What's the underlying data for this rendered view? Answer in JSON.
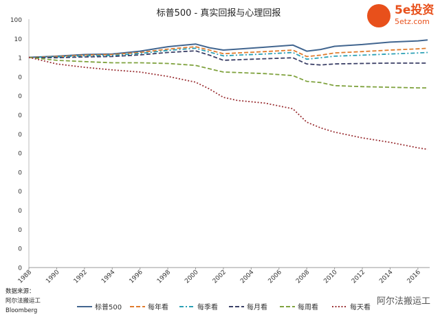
{
  "chart_data": {
    "type": "line",
    "title": "标普500 - 真实回报与心理回报",
    "xlabel": "",
    "ylabel": "",
    "y_ticks": [
      "100",
      "10",
      "1",
      "0",
      "0",
      "0",
      "0",
      "0",
      "0",
      "0",
      "0",
      "0",
      "0",
      "0"
    ],
    "x_ticks": [
      "1988",
      "1990",
      "1992",
      "1994",
      "1996",
      "1998",
      "2000",
      "2002",
      "2004",
      "2006",
      "2008",
      "2010",
      "2012",
      "2014",
      "2016"
    ],
    "xlim": [
      1988,
      2016.7
    ],
    "grid": false,
    "legend_position": "bottom",
    "series": [
      {
        "name": "标普500",
        "color": "#41658f",
        "style": "solid",
        "points": [
          [
            1988,
            1.0
          ],
          [
            1990,
            1.15
          ],
          [
            1992,
            1.4
          ],
          [
            1994,
            1.5
          ],
          [
            1996,
            2.1
          ],
          [
            1998,
            3.6
          ],
          [
            2000,
            5.0
          ],
          [
            2001,
            3.2
          ],
          [
            2002,
            2.4
          ],
          [
            2003,
            2.7
          ],
          [
            2005,
            3.4
          ],
          [
            2007,
            4.4
          ],
          [
            2008,
            2.1
          ],
          [
            2009,
            2.6
          ],
          [
            2010,
            3.8
          ],
          [
            2012,
            4.7
          ],
          [
            2014,
            6.3
          ],
          [
            2016,
            7.3
          ],
          [
            2016.7,
            8.2
          ]
        ]
      },
      {
        "name": "每年看",
        "color": "#e07b2c",
        "style": "dashed",
        "points": [
          [
            1988,
            1.0
          ],
          [
            1990,
            1.1
          ],
          [
            1992,
            1.3
          ],
          [
            1994,
            1.4
          ],
          [
            1996,
            1.8
          ],
          [
            1998,
            2.7
          ],
          [
            2000,
            3.6
          ],
          [
            2001,
            2.4
          ],
          [
            2002,
            1.55
          ],
          [
            2003,
            1.7
          ],
          [
            2005,
            2.0
          ],
          [
            2007,
            2.4
          ],
          [
            2008,
            1.1
          ],
          [
            2009,
            1.3
          ],
          [
            2010,
            1.7
          ],
          [
            2012,
            2.0
          ],
          [
            2014,
            2.4
          ],
          [
            2016,
            2.8
          ],
          [
            2016.7,
            3.0
          ]
        ]
      },
      {
        "name": "每季看",
        "color": "#2a9fb5",
        "style": "dashdot",
        "points": [
          [
            1988,
            1.0
          ],
          [
            1990,
            1.05
          ],
          [
            1992,
            1.2
          ],
          [
            1994,
            1.25
          ],
          [
            1996,
            1.6
          ],
          [
            1998,
            2.3
          ],
          [
            2000,
            3.0
          ],
          [
            2001,
            1.9
          ],
          [
            2002,
            1.2
          ],
          [
            2003,
            1.3
          ],
          [
            2005,
            1.5
          ],
          [
            2007,
            1.8
          ],
          [
            2008,
            0.8
          ],
          [
            2009,
            0.95
          ],
          [
            2010,
            1.15
          ],
          [
            2012,
            1.3
          ],
          [
            2014,
            1.5
          ],
          [
            2016,
            1.7
          ],
          [
            2016.7,
            1.8
          ]
        ]
      },
      {
        "name": "每月看",
        "color": "#3a3f66",
        "style": "dashed",
        "points": [
          [
            1988,
            1.0
          ],
          [
            1990,
            0.95
          ],
          [
            1992,
            1.05
          ],
          [
            1994,
            1.1
          ],
          [
            1996,
            1.35
          ],
          [
            1998,
            1.8
          ],
          [
            2000,
            2.2
          ],
          [
            2001,
            1.3
          ],
          [
            2002,
            0.7
          ],
          [
            2003,
            0.75
          ],
          [
            2005,
            0.85
          ],
          [
            2007,
            0.95
          ],
          [
            2008,
            0.45
          ],
          [
            2009,
            0.4
          ],
          [
            2010,
            0.45
          ],
          [
            2012,
            0.48
          ],
          [
            2014,
            0.5
          ],
          [
            2016,
            0.5
          ],
          [
            2016.7,
            0.5
          ]
        ]
      },
      {
        "name": "每周看",
        "color": "#7fa23e",
        "style": "dashed",
        "points": [
          [
            1988,
            1.0
          ],
          [
            1990,
            0.7
          ],
          [
            1992,
            0.6
          ],
          [
            1994,
            0.52
          ],
          [
            1996,
            0.52
          ],
          [
            1998,
            0.48
          ],
          [
            2000,
            0.38
          ],
          [
            2001,
            0.25
          ],
          [
            2002,
            0.17
          ],
          [
            2003,
            0.16
          ],
          [
            2005,
            0.14
          ],
          [
            2007,
            0.11
          ],
          [
            2008,
            0.055
          ],
          [
            2009,
            0.048
          ],
          [
            2010,
            0.033
          ],
          [
            2012,
            0.029
          ],
          [
            2014,
            0.027
          ],
          [
            2016,
            0.025
          ],
          [
            2016.7,
            0.025
          ]
        ]
      },
      {
        "name": "每天看",
        "color": "#9b3236",
        "style": "dotted",
        "points": [
          [
            1988,
            1.0
          ],
          [
            1990,
            0.45
          ],
          [
            1992,
            0.3
          ],
          [
            1994,
            0.22
          ],
          [
            1996,
            0.17
          ],
          [
            1998,
            0.1
          ],
          [
            2000,
            0.05
          ],
          [
            2001,
            0.022
          ],
          [
            2002,
            0.008
          ],
          [
            2003,
            0.0055
          ],
          [
            2005,
            0.004
          ],
          [
            2007,
            0.002
          ],
          [
            2008,
            0.0004
          ],
          [
            2009,
            0.0002
          ],
          [
            2010,
            0.00012
          ],
          [
            2012,
            6e-05
          ],
          [
            2014,
            3.5e-05
          ],
          [
            2016,
            1.8e-05
          ],
          [
            2016.7,
            1.5e-05
          ]
        ]
      }
    ]
  },
  "source_text": {
    "line1": "数据来源：",
    "line2": "阿尔法搬运工",
    "line3": "Bloomberg"
  },
  "logo": {
    "brand": "5e投资",
    "site": "5etz.com"
  },
  "watermark": "阿尔法搬运工"
}
